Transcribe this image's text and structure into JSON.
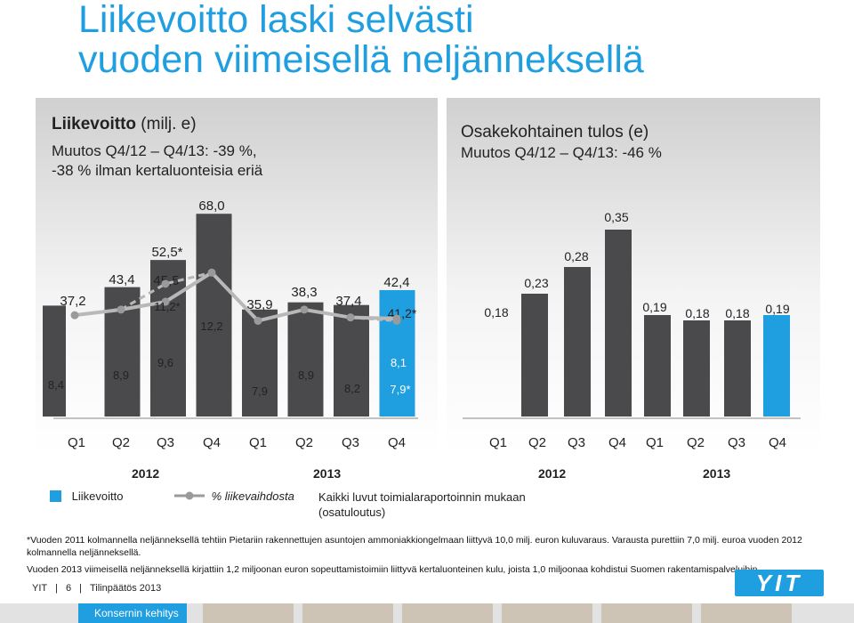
{
  "page": {
    "title_line1": "Liikevoitto laski selvästi",
    "title_line2": "vuoden viimeisellä neljänneksellä"
  },
  "left_panel": {
    "heading_bold": "Liikevoitto",
    "heading_unit": "(milj. e)",
    "sub_line1": "Muutos Q4/12 – Q4/13: -39 %,",
    "sub_line2": "-38 % ilman kertaluonteisia eriä"
  },
  "right_panel": {
    "heading": "Osakekohtainen tulos (e)",
    "sub_line1": "Muutos Q4/12 – Q4/13: -46 %"
  },
  "chart_data": [
    {
      "type": "bar",
      "categories": [
        "Q1",
        "Q2",
        "Q3",
        "Q4",
        "Q1",
        "Q2",
        "Q3",
        "Q4"
      ],
      "year_labels": [
        "2012",
        "2013"
      ],
      "series": [
        {
          "name": "Liikevoitto",
          "values": [
            37.2,
            43.4,
            45.5,
            68.0,
            35.9,
            38.3,
            37.4,
            42.4
          ],
          "labels": [
            "37,2",
            "43,4",
            "45,5",
            "68,0",
            "35,9",
            "38,3",
            "37,4",
            "42,4"
          ]
        },
        {
          "name": "% liikevaihdosta",
          "type": "line",
          "values": [
            8.4,
            8.9,
            9.6,
            12.2,
            7.9,
            8.9,
            8.2,
            8.1
          ],
          "labels": [
            "8,4",
            "8,9",
            "9,6",
            "12,2",
            "7,9",
            "8,9",
            "8,2",
            "8,1"
          ]
        }
      ],
      "adjusted_labels": {
        "q3_2012_bar": "52,5*",
        "q3_2012_pct": "11,2*",
        "q4_2013_bar": "41,2*",
        "q4_2013_pct": "7,9*"
      },
      "adjusted_values": {
        "q3_2012_bar": 52.5,
        "q3_2012_pct": 11.2,
        "q4_2013_bar": 41.2,
        "q4_2013_pct": 7.9
      }
    },
    {
      "type": "bar",
      "categories": [
        "Q1",
        "Q2",
        "Q3",
        "Q4",
        "Q1",
        "Q2",
        "Q3",
        "Q4"
      ],
      "year_labels": [
        "2012",
        "2013"
      ],
      "series": [
        {
          "name": "Osakekohtainen tulos",
          "values": [
            0.18,
            0.23,
            0.28,
            0.35,
            0.19,
            0.18,
            0.18,
            0.19
          ],
          "labels": [
            "0,18",
            "0,23",
            "0,28",
            "0,35",
            "0,19",
            "0,18",
            "0,18",
            "0,19"
          ]
        }
      ]
    }
  ],
  "legend": {
    "bar_label": "Liikevoitto",
    "line_label": "% liikevaihdosta",
    "note_line1": "Kaikki luvut toimialaraportoinnin mukaan",
    "note_line2": "(osatuloutus)"
  },
  "notes": {
    "note1": "*Vuoden 2011 kolmannella neljänneksellä tehtiin Pietariin rakennettujen asuntojen ammoniakkiongelmaan liittyvä 10,0 milj. euron kuluvaraus. Varausta purettiin 7,0 milj. euroa vuoden 2012 kolmannella neljänneksellä.",
    "note2": "Vuoden 2013 viimeisellä neljänneksellä kirjattiin 1,2 miljoonan euron sopeuttamistoimiin liittyvä kertaluonteinen kulu, joista 1,0 miljoonaa kohdistui Suomen rakentamispalveluihin."
  },
  "footer": {
    "company": "YIT",
    "page_number": "6",
    "doc": "Tilinpäätös 2013",
    "logo_text": "YIT",
    "tab_label": "Konsernin kehitys"
  },
  "colors": {
    "title": "#1f9ee0",
    "bar_dark": "#4a4a4c",
    "bar_highlight": "#1f9ee0",
    "line": "#9a9a9a"
  }
}
